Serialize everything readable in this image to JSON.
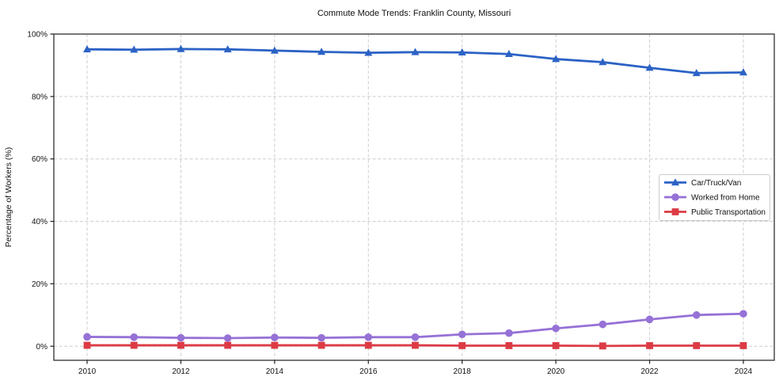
{
  "chart_data": {
    "type": "line",
    "title": "Commute Mode Trends: Franklin County, Missouri",
    "xlabel": "",
    "ylabel": "Percentage of Workers (%)",
    "x": [
      2010,
      2011,
      2012,
      2013,
      2014,
      2015,
      2016,
      2017,
      2018,
      2019,
      2020,
      2021,
      2022,
      2023,
      2024
    ],
    "xticks": [
      2010,
      2012,
      2014,
      2016,
      2018,
      2020,
      2022,
      2024
    ],
    "yticks": [
      0,
      20,
      40,
      60,
      80,
      100
    ],
    "ytick_suffix": "%",
    "xlim": [
      2009.29,
      2024.66
    ],
    "ylim": [
      -4.5,
      100
    ],
    "grid": true,
    "grid_style": "dashed",
    "legend_position": "center-right",
    "series": [
      {
        "name": "Car/Truck/Van",
        "color": "#2b62c5",
        "marker": "triangle",
        "values": [
          95.1,
          95.0,
          95.2,
          95.1,
          94.7,
          94.3,
          94.0,
          94.2,
          94.1,
          93.6,
          92.0,
          91.0,
          89.2,
          87.5,
          87.7
        ]
      },
      {
        "name": "Worked from Home",
        "color": "#9671d6",
        "marker": "circle",
        "values": [
          3.0,
          2.9,
          2.7,
          2.6,
          2.8,
          2.7,
          2.9,
          2.9,
          3.8,
          4.2,
          5.7,
          7.0,
          8.6,
          10.0,
          10.4
        ]
      },
      {
        "name": "Public Transportation",
        "color": "#dc3b45",
        "marker": "square",
        "values": [
          0.3,
          0.3,
          0.3,
          0.3,
          0.3,
          0.3,
          0.3,
          0.3,
          0.2,
          0.2,
          0.2,
          0.1,
          0.2,
          0.2,
          0.2
        ]
      }
    ],
    "colors": {
      "grid": "#cdcdcd",
      "spine": "#1f1f1f",
      "text": "#111111",
      "legend_border": "#cccccc",
      "legend_bg": "#ffffff"
    }
  }
}
